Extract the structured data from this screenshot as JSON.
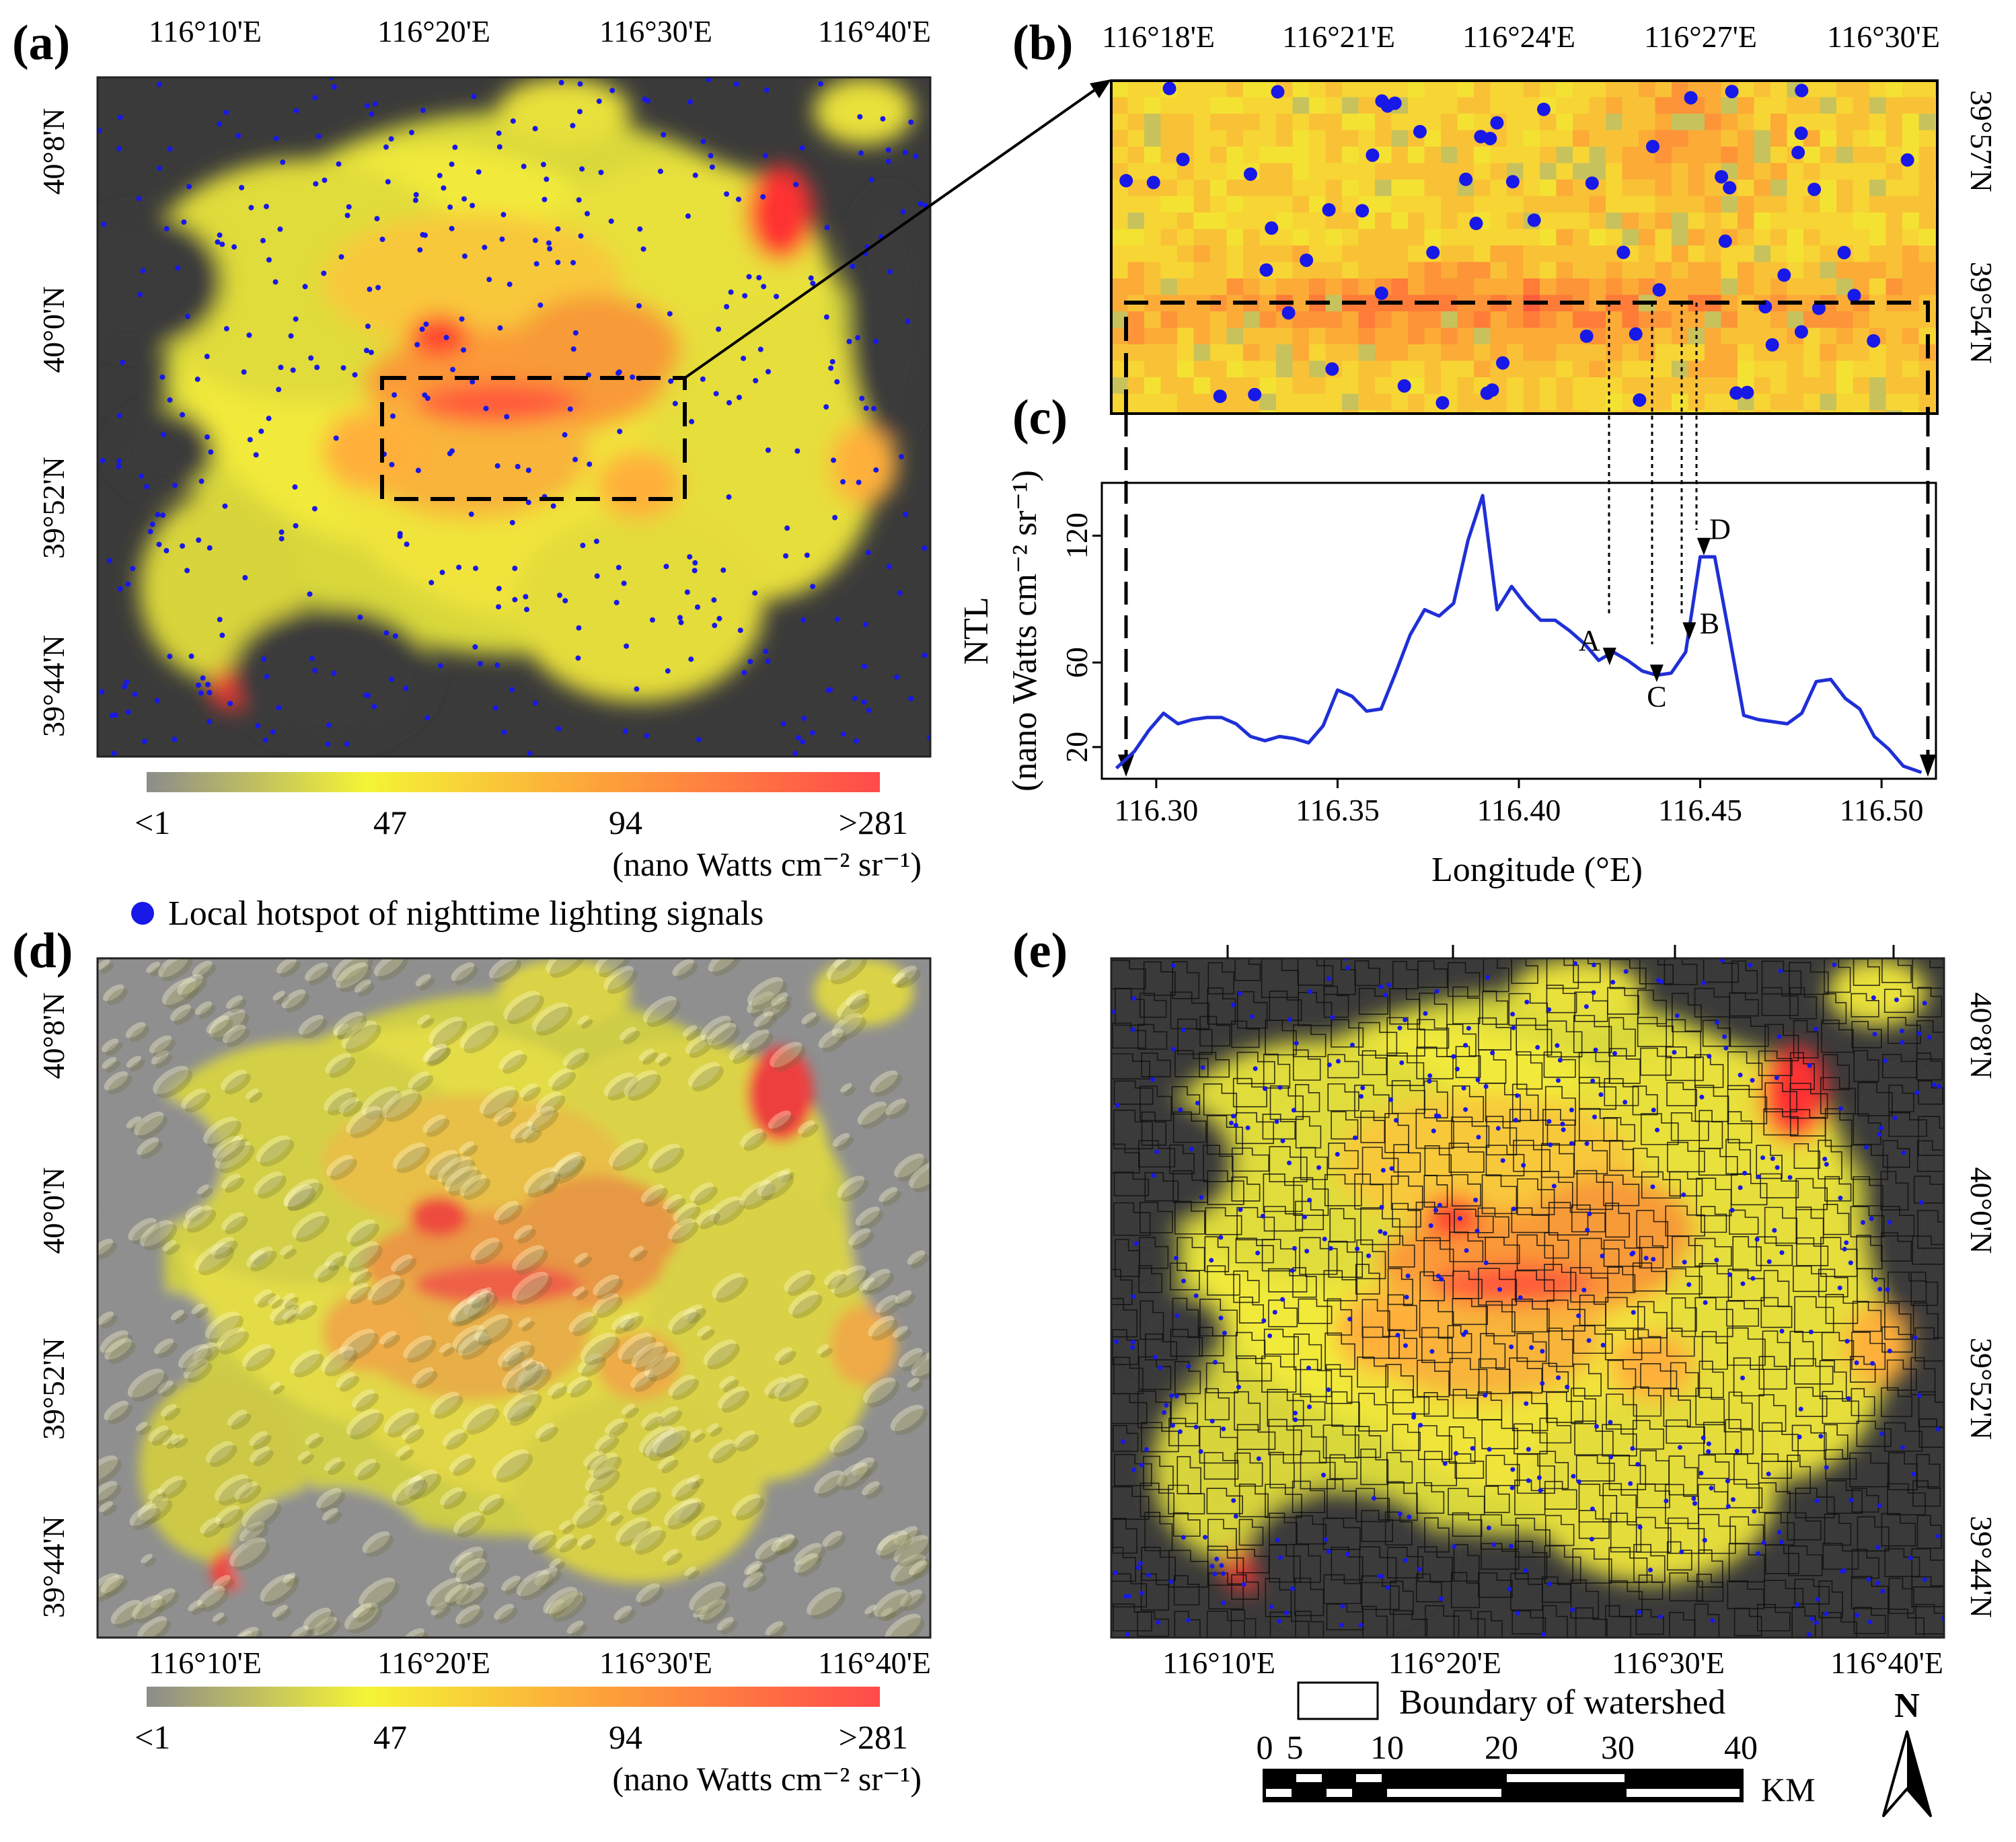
{
  "panel_labels": {
    "a": "(a)",
    "b": "(b)",
    "c": "(c)",
    "d": "(d)",
    "e": "(e)"
  },
  "panel_a": {
    "top_ticks": [
      "116°10'E",
      "116°20'E",
      "116°30'E",
      "116°40'E"
    ],
    "left_ticks": [
      "40°8'N",
      "40°0'N",
      "39°52'N",
      "39°44'N"
    ]
  },
  "panel_b": {
    "top_ticks": [
      "116°18'E",
      "116°21'E",
      "116°24'E",
      "116°27'E",
      "116°30'E"
    ],
    "right_ticks": [
      "39°57'N",
      "39°54'N"
    ]
  },
  "panel_d": {
    "bottom_ticks": [
      "116°10'E",
      "116°20'E",
      "116°30'E",
      "116°40'E"
    ],
    "left_ticks": [
      "40°8'N",
      "40°0'N",
      "39°52'N",
      "39°44'N"
    ]
  },
  "panel_e": {
    "bottom_ticks": [
      "116°10'E",
      "116°20'E",
      "116°30'E",
      "116°40'E"
    ],
    "right_ticks": [
      "40°8'N",
      "40°0'N",
      "39°52'N",
      "39°44'N"
    ]
  },
  "colorbar": {
    "labels": [
      "<1",
      "47",
      "94",
      ">281"
    ],
    "unit": "(nano Watts cm⁻² sr⁻¹)",
    "colors": [
      "#8c8c8c",
      "#f4f436",
      "#fda23a",
      "#ff4a4a"
    ]
  },
  "legend": {
    "hotspot_label": "Local hotspot of nighttime lighting signals",
    "hotspot_color": "#1818e8",
    "watershed_label": "Boundary of watershed"
  },
  "scale_bar": {
    "ticks": [
      "0",
      "5",
      "10",
      "20",
      "30",
      "40"
    ],
    "unit": "KM"
  },
  "north_arrow": {
    "label": "N"
  },
  "chart_data": {
    "type": "line",
    "title": "",
    "xlabel": "Longitude (°E)",
    "ylabel_line1": "NTL",
    "ylabel_line2": "(nano Watts cm⁻² sr⁻¹)",
    "xlim": [
      116.285,
      116.515
    ],
    "ylim": [
      5,
      145
    ],
    "xticks": [
      "116.30",
      "116.35",
      "116.40",
      "116.45",
      "116.50"
    ],
    "yticks": [
      "20",
      "60",
      "120"
    ],
    "series": [
      {
        "name": "NTL profile",
        "color": "#1f2fd6",
        "x": [
          116.289,
          116.294,
          116.298,
          116.302,
          116.306,
          116.31,
          116.314,
          116.318,
          116.322,
          116.326,
          116.33,
          116.334,
          116.338,
          116.342,
          116.346,
          116.35,
          116.354,
          116.358,
          116.362,
          116.366,
          116.37,
          116.374,
          116.378,
          116.382,
          116.386,
          116.39,
          116.394,
          116.398,
          116.402,
          116.406,
          116.41,
          116.414,
          116.418,
          116.422,
          116.426,
          116.43,
          116.434,
          116.438,
          116.442,
          116.446,
          116.45,
          116.454,
          116.458,
          116.462,
          116.466,
          116.47,
          116.474,
          116.478,
          116.482,
          116.486,
          116.49,
          116.494,
          116.498,
          116.502,
          116.506,
          116.511
        ],
        "values": [
          10,
          18,
          28,
          36,
          31,
          33,
          34,
          34,
          31,
          25,
          23,
          25,
          24,
          22,
          30,
          47,
          44,
          37,
          38,
          55,
          73,
          85,
          82,
          88,
          118,
          139,
          85,
          96,
          87,
          80,
          80,
          75,
          69,
          61,
          65,
          61,
          56,
          54,
          55,
          65,
          110,
          110,
          73,
          35,
          33,
          32,
          31,
          36,
          51,
          52,
          43,
          38,
          25,
          19,
          11,
          8
        ]
      }
    ],
    "annotations": [
      {
        "label": "A",
        "x": 116.425,
        "y": 60
      },
      {
        "label": "B",
        "x": 116.447,
        "y": 72
      },
      {
        "label": "C",
        "x": 116.438,
        "y": 52
      },
      {
        "label": "D",
        "x": 116.451,
        "y": 112
      }
    ]
  }
}
